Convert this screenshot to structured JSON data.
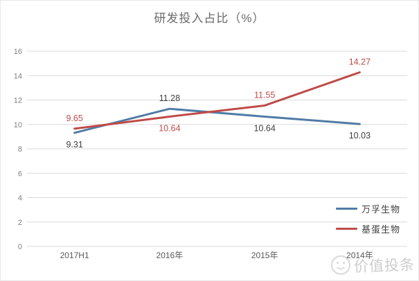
{
  "chart_data": {
    "type": "line",
    "title": "研发投入占比（%）",
    "categories": [
      "2017H1",
      "2016年",
      "2015年",
      "2014年"
    ],
    "series": [
      {
        "name": "万孚生物",
        "color": "#4F7BA5",
        "label_color": "#404040",
        "values": [
          9.31,
          11.28,
          10.64,
          10.03
        ]
      },
      {
        "name": "基蛋生物",
        "color": "#BE4B48",
        "label_color": "#BE4B48",
        "values": [
          9.65,
          10.64,
          11.55,
          14.27
        ]
      }
    ],
    "ylim": [
      0,
      16
    ],
    "ytick_step": 2,
    "grid": true,
    "gridline_color": "#d9d9d9",
    "ytick_color": "#7f7f7f",
    "xtick_color": "#595959",
    "legend_position": "right-bottom"
  },
  "watermark": {
    "text": "价值投条"
  }
}
